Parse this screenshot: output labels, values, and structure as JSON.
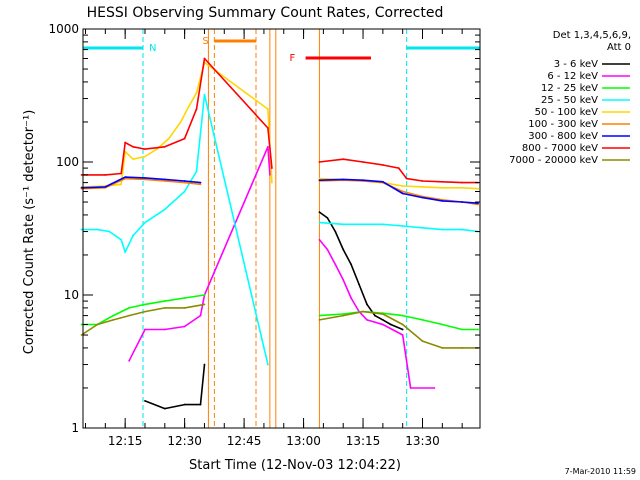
{
  "chart_data": {
    "type": "line",
    "title": "HESSI Observing Summary Count Rates, Corrected",
    "xlabel": "Start Time (12-Nov-03 12:04:22)",
    "ylabel": "Corrected Count Rate (s⁻¹ detector⁻¹)",
    "y_scale": "log",
    "ylim": [
      1,
      1000
    ],
    "xlim": [
      "12:04:22",
      "13:44:30"
    ],
    "x_ticks": [
      "12:15",
      "12:30",
      "12:45",
      "13:00",
      "13:15",
      "13:30"
    ],
    "y_ticks": [
      "1",
      "10",
      "100",
      "1000"
    ],
    "legend_header": [
      "Det 1,3,4,5,6,9,",
      "Att 0"
    ],
    "legend_position": "right",
    "footer": "7-Mar-2010 11:59",
    "colors": {
      "night_bar": "#00e5ee",
      "saa_bar": "#ff8000",
      "flare_bar": "#ff0000",
      "night_line": "#00e5ee",
      "saa_line": "#ff8000"
    },
    "markers": {
      "night": "N",
      "saa": "S",
      "flare": "F"
    },
    "intervals": {
      "night": [
        [
          "12:04:22",
          "12:19:30"
        ],
        [
          "13:26:00",
          "13:44:30"
        ]
      ],
      "saa": [
        [
          "12:37:30",
          "12:48:00"
        ]
      ],
      "flare": [
        [
          "13:00:30",
          "13:17:00"
        ]
      ],
      "data_gaps": [
        [
          "12:36:00",
          "12:51:30"
        ],
        [
          "12:53:00",
          "13:04:00"
        ]
      ]
    },
    "series": [
      {
        "name": "3 - 6 keV",
        "color": "#000000",
        "points": [
          [
            "12:20",
            "1.6"
          ],
          [
            "12:25",
            "1.4"
          ],
          [
            "12:30",
            "1.5"
          ],
          [
            "12:34",
            "1.5"
          ],
          [
            "12:35",
            "3"
          ],
          [
            "13:04",
            "42"
          ],
          [
            "13:06",
            "38"
          ],
          [
            "13:08",
            "30"
          ],
          [
            "13:10",
            "22"
          ],
          [
            "13:12",
            "17"
          ],
          [
            "13:14",
            "12"
          ],
          [
            "13:16",
            "8.5"
          ],
          [
            "13:18",
            "7"
          ],
          [
            "13:20",
            "6.5"
          ],
          [
            "13:22",
            "6"
          ],
          [
            "13:25",
            "5.5"
          ]
        ]
      },
      {
        "name": "6 - 12 keV",
        "color": "#ff00ff",
        "points": [
          [
            "12:16",
            "3.2"
          ],
          [
            "12:20",
            "5.5"
          ],
          [
            "12:25",
            "5.5"
          ],
          [
            "12:30",
            "5.8"
          ],
          [
            "12:34",
            "7"
          ],
          [
            "12:35",
            "10"
          ],
          [
            "12:51",
            "130"
          ],
          [
            "12:51.5",
            "80"
          ],
          [
            "13:04",
            "26"
          ],
          [
            "13:06",
            "22"
          ],
          [
            "13:08",
            "17"
          ],
          [
            "13:10",
            "13"
          ],
          [
            "13:12",
            "9.5"
          ],
          [
            "13:14",
            "7.5"
          ],
          [
            "13:16",
            "6.5"
          ],
          [
            "13:20",
            "6"
          ],
          [
            "13:25",
            "5"
          ],
          [
            "13:27",
            "2"
          ],
          [
            "13:33",
            "2"
          ]
        ]
      },
      {
        "name": "12 - 25 keV",
        "color": "#00ff00",
        "points": [
          [
            "12:04",
            "6"
          ],
          [
            "12:08",
            "6"
          ],
          [
            "12:12",
            "7"
          ],
          [
            "12:16",
            "8"
          ],
          [
            "12:20",
            "8.5"
          ],
          [
            "12:25",
            "9"
          ],
          [
            "12:30",
            "9.5"
          ],
          [
            "12:35",
            "10"
          ],
          [
            "13:04",
            "7"
          ],
          [
            "13:10",
            "7.2"
          ],
          [
            "13:15",
            "7.5"
          ],
          [
            "13:20",
            "7.3"
          ],
          [
            "13:25",
            "7"
          ],
          [
            "13:30",
            "6.5"
          ],
          [
            "13:35",
            "6"
          ],
          [
            "13:40",
            "5.5"
          ],
          [
            "13:44",
            "5.5"
          ]
        ]
      },
      {
        "name": "25 - 50 keV",
        "color": "#00ffff",
        "points": [
          [
            "12:04",
            "31"
          ],
          [
            "12:08",
            "31"
          ],
          [
            "12:11",
            "30"
          ],
          [
            "12:14",
            "26"
          ],
          [
            "12:15",
            "21"
          ],
          [
            "12:17",
            "28"
          ],
          [
            "12:20",
            "35"
          ],
          [
            "12:25",
            "44"
          ],
          [
            "12:30",
            "60"
          ],
          [
            "12:33",
            "85"
          ],
          [
            "12:35",
            "320"
          ],
          [
            "12:51",
            "3"
          ],
          [
            "13:04",
            "35"
          ],
          [
            "13:10",
            "34"
          ],
          [
            "13:15",
            "34"
          ],
          [
            "13:20",
            "34"
          ],
          [
            "13:25",
            "33"
          ],
          [
            "13:30",
            "32"
          ],
          [
            "13:35",
            "31"
          ],
          [
            "13:40",
            "31"
          ],
          [
            "13:44",
            "30"
          ]
        ]
      },
      {
        "name": "50 - 100 keV",
        "color": "#ffd700",
        "points": [
          [
            "12:04",
            "65"
          ],
          [
            "12:10",
            "66"
          ],
          [
            "12:14",
            "68"
          ],
          [
            "12:15",
            "120"
          ],
          [
            "12:17",
            "105"
          ],
          [
            "12:20",
            "110"
          ],
          [
            "12:23",
            "125"
          ],
          [
            "12:26",
            "150"
          ],
          [
            "12:29",
            "200"
          ],
          [
            "12:31",
            "260"
          ],
          [
            "12:33",
            "330"
          ],
          [
            "12:35",
            "560"
          ],
          [
            "12:51",
            "250"
          ],
          [
            "12:52",
            "70"
          ],
          [
            "13:04",
            "75"
          ],
          [
            "13:10",
            "74"
          ],
          [
            "13:15",
            "72"
          ],
          [
            "13:20",
            "70"
          ],
          [
            "13:25",
            "66"
          ],
          [
            "13:30",
            "65"
          ],
          [
            "13:35",
            "64"
          ],
          [
            "13:40",
            "64"
          ],
          [
            "13:44",
            "63"
          ]
        ]
      },
      {
        "name": "100 - 300 keV",
        "color": "#ff8000",
        "points": [
          [
            "12:04",
            "63"
          ],
          [
            "12:10",
            "64"
          ],
          [
            "12:15",
            "75"
          ],
          [
            "12:20",
            "74"
          ],
          [
            "12:25",
            "72"
          ],
          [
            "12:30",
            "70"
          ],
          [
            "12:34",
            "68"
          ],
          [
            "13:04",
            "72"
          ],
          [
            "13:10",
            "73"
          ],
          [
            "13:15",
            "72"
          ],
          [
            "13:20",
            "70"
          ],
          [
            "13:25",
            "60"
          ],
          [
            "13:30",
            "55"
          ],
          [
            "13:35",
            "52"
          ],
          [
            "13:40",
            "50"
          ],
          [
            "13:44",
            "48"
          ]
        ]
      },
      {
        "name": "300 - 800 keV",
        "color": "#0000ff",
        "points": [
          [
            "12:04",
            "64"
          ],
          [
            "12:10",
            "65"
          ],
          [
            "12:15",
            "77"
          ],
          [
            "12:20",
            "76"
          ],
          [
            "12:25",
            "74"
          ],
          [
            "12:30",
            "72"
          ],
          [
            "12:34",
            "70"
          ],
          [
            "13:04",
            "73"
          ],
          [
            "13:10",
            "74"
          ],
          [
            "13:15",
            "73"
          ],
          [
            "13:20",
            "71"
          ],
          [
            "13:25",
            "58"
          ],
          [
            "13:30",
            "54"
          ],
          [
            "13:35",
            "51"
          ],
          [
            "13:40",
            "50"
          ],
          [
            "13:44",
            "49"
          ]
        ]
      },
      {
        "name": "800 - 7000 keV",
        "color": "#ff0000",
        "points": [
          [
            "12:04",
            "80"
          ],
          [
            "12:10",
            "80"
          ],
          [
            "12:14",
            "82"
          ],
          [
            "12:15",
            "140"
          ],
          [
            "12:17",
            "130"
          ],
          [
            "12:20",
            "125"
          ],
          [
            "12:25",
            "130"
          ],
          [
            "12:30",
            "150"
          ],
          [
            "12:33",
            "250"
          ],
          [
            "12:35",
            "600"
          ],
          [
            "12:51",
            "180"
          ],
          [
            "12:52",
            "90"
          ],
          [
            "13:04",
            "100"
          ],
          [
            "13:10",
            "105"
          ],
          [
            "13:15",
            "100"
          ],
          [
            "13:20",
            "95"
          ],
          [
            "13:24",
            "90"
          ],
          [
            "13:26",
            "75"
          ],
          [
            "13:30",
            "72"
          ],
          [
            "13:35",
            "71"
          ],
          [
            "13:40",
            "70"
          ],
          [
            "13:44",
            "70"
          ]
        ]
      },
      {
        "name": "7000 - 20000 keV",
        "color": "#8b8b00",
        "points": [
          [
            "12:04",
            "5"
          ],
          [
            "12:08",
            "6"
          ],
          [
            "12:12",
            "6.5"
          ],
          [
            "12:16",
            "7"
          ],
          [
            "12:20",
            "7.5"
          ],
          [
            "12:25",
            "8"
          ],
          [
            "12:30",
            "8"
          ],
          [
            "12:35",
            "8.5"
          ],
          [
            "13:04",
            "6.5"
          ],
          [
            "13:10",
            "7"
          ],
          [
            "13:15",
            "7.5"
          ],
          [
            "13:20",
            "7.2"
          ],
          [
            "13:25",
            "6"
          ],
          [
            "13:30",
            "4.5"
          ],
          [
            "13:35",
            "4"
          ],
          [
            "13:40",
            "4"
          ],
          [
            "13:44",
            "4"
          ]
        ]
      }
    ]
  }
}
